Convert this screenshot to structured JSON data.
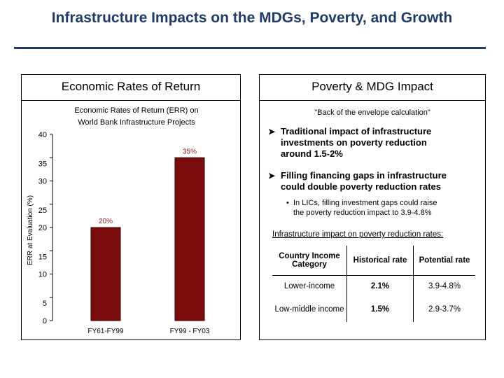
{
  "slide": {
    "title": "Infrastructure Impacts on the MDGs, Poverty, and Growth"
  },
  "left_panel": {
    "heading": "Economic Rates of Return"
  },
  "chart_data": {
    "type": "bar",
    "title_line1": "Economic Rates of Return (ERR) on",
    "title_line2": "World Bank Infrastructure Projects",
    "ylabel": "ERR at Evaluation (%)",
    "xlabel": "",
    "ylim": [
      0,
      40
    ],
    "yticks": [
      0,
      5,
      10,
      15,
      20,
      25,
      30,
      35,
      40
    ],
    "categories": [
      "FY61-FY99",
      "FY99 - FY03"
    ],
    "values": [
      20,
      35
    ],
    "data_labels": [
      "20%",
      "35%"
    ],
    "bar_color": "#7b0c0c",
    "label_color": "#8b1a1a",
    "grid": false
  },
  "right_panel": {
    "heading": "Poverty & MDG Impact",
    "note": "\"Back of the envelope calculation\"",
    "bullet1_line1": "Traditional impact of infrastructure",
    "bullet1_line2": "investments on poverty reduction",
    "bullet1_line3": "around 1.5-2%",
    "bullet2_line1": "Filling financing gaps in infrastructure",
    "bullet2_line2": "could double poverty reduction rates",
    "subbullet_line1": "In LICs, filling investment gaps could raise",
    "subbullet_line2": "the poverty reduction impact to 3.9-4.8%",
    "table_caption": "Infrastructure impact on poverty reduction rates:",
    "table": {
      "headers": [
        "Country Income Category",
        "Historical rate",
        "Potential rate"
      ],
      "rows": [
        [
          "Lower-income",
          "2.1%",
          "3.9-4.8%"
        ],
        [
          "Low-middle income",
          "1.5%",
          "2.9-3.7%"
        ]
      ]
    }
  }
}
